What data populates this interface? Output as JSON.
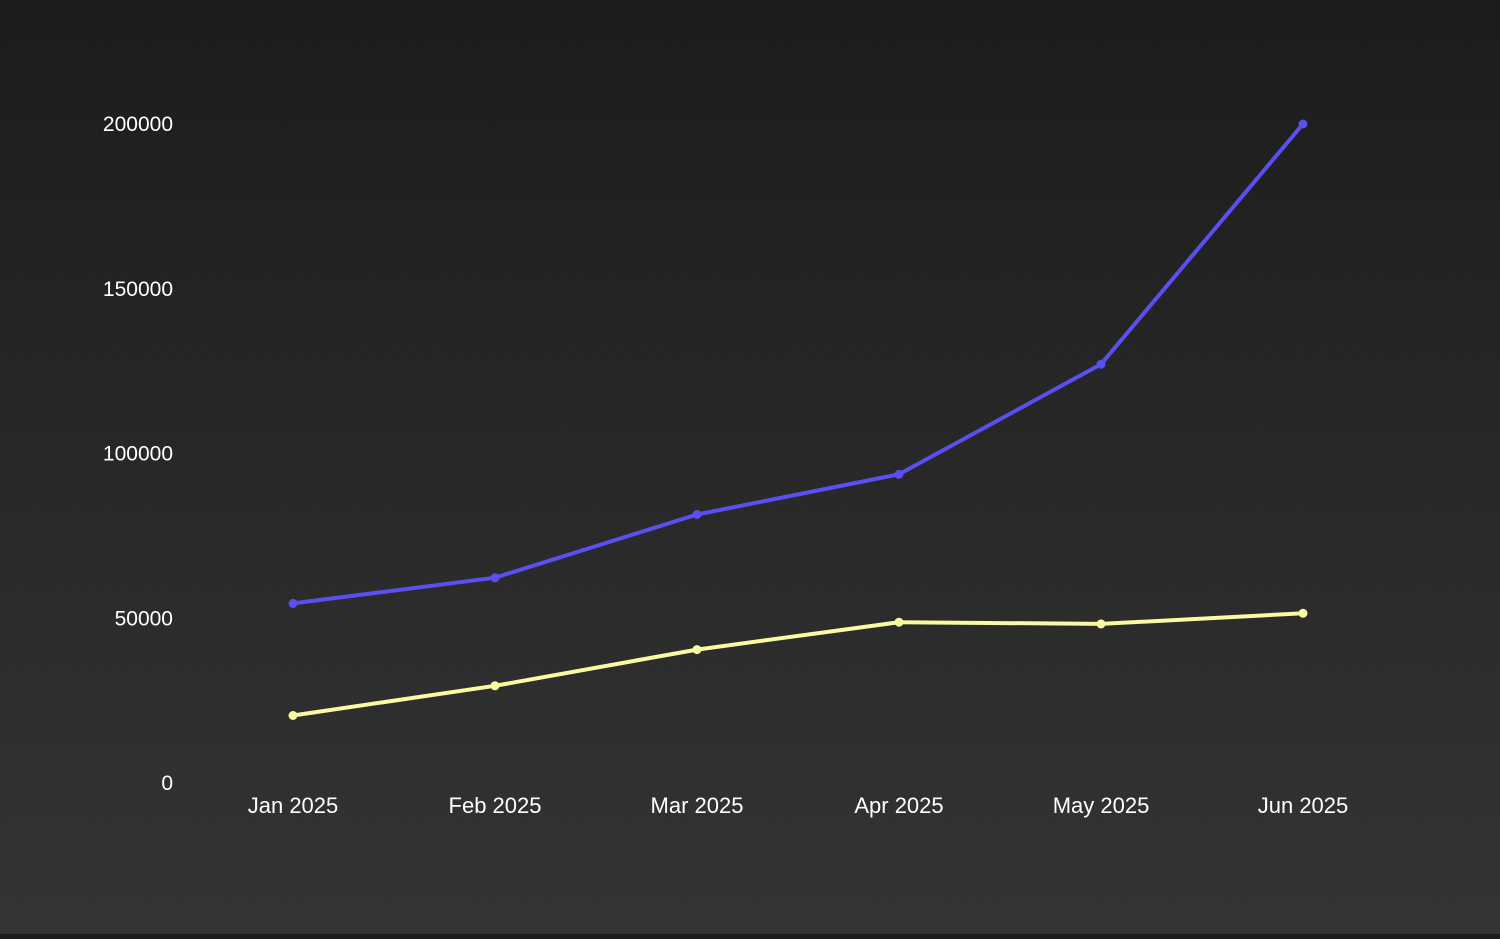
{
  "chart_data": {
    "type": "line",
    "title": "",
    "xlabel": "",
    "ylabel": "",
    "categories": [
      "Jan 2025",
      "Feb 2025",
      "Mar 2025",
      "Apr 2025",
      "May 2025",
      "Jun 2025"
    ],
    "y_ticks": [
      0,
      50000,
      100000,
      150000,
      200000
    ],
    "ylim": [
      0,
      200000
    ],
    "grid": false,
    "legend": "none",
    "series": [
      {
        "color": "#5a4ff0",
        "values": [
          54500,
          62300,
          81500,
          93700,
          127100,
          200000
        ]
      },
      {
        "color": "#fafaa0",
        "values": [
          20500,
          29500,
          40500,
          48800,
          48300,
          51500
        ]
      }
    ]
  }
}
